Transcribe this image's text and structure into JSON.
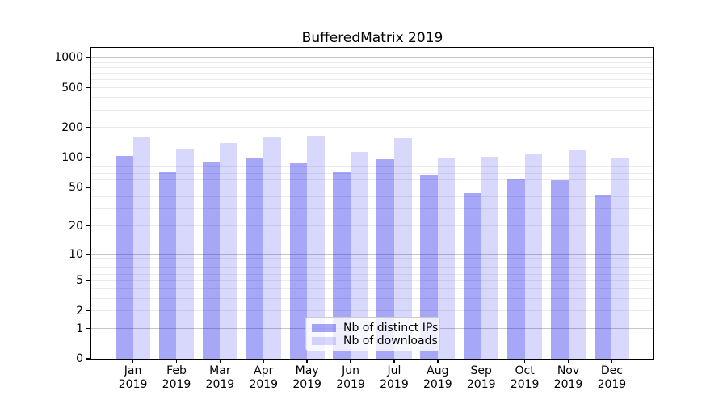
{
  "chart_data": {
    "type": "bar",
    "title": "BufferedMatrix 2019",
    "categories": [
      "Jan",
      "Feb",
      "Mar",
      "Apr",
      "May",
      "Jun",
      "Jul",
      "Aug",
      "Sep",
      "Oct",
      "Nov",
      "Dec"
    ],
    "series": [
      {
        "name": "Nb of distinct IPs",
        "color": "rgba(10,10,235,0.36)",
        "values": [
          103,
          71,
          90,
          100,
          87,
          72,
          97,
          66,
          44,
          60,
          59,
          42
        ]
      },
      {
        "name": "Nb of downloads",
        "color": "rgba(10,10,235,0.16)",
        "values": [
          164,
          123,
          141,
          163,
          165,
          114,
          157,
          101,
          102,
          108,
          118,
          100
        ]
      }
    ],
    "y_axis": {
      "scale": "log-like (position proportional to log10(1+value))",
      "ticks": [
        0,
        1,
        2,
        5,
        10,
        20,
        50,
        100,
        200,
        500,
        1000
      ],
      "range": [
        0,
        1260
      ]
    },
    "x_axis": {
      "tick_line2": "2019"
    },
    "legend": {
      "position": "lower center",
      "items": [
        "Nb of distinct IPs",
        "Nb of downloads"
      ]
    },
    "grid": {
      "major": [
        1,
        10,
        100,
        1000
      ],
      "minor": [
        2,
        3,
        4,
        5,
        6,
        7,
        8,
        9,
        20,
        30,
        40,
        50,
        60,
        70,
        80,
        90,
        200,
        300,
        400,
        500,
        600,
        700,
        800,
        900
      ]
    }
  }
}
